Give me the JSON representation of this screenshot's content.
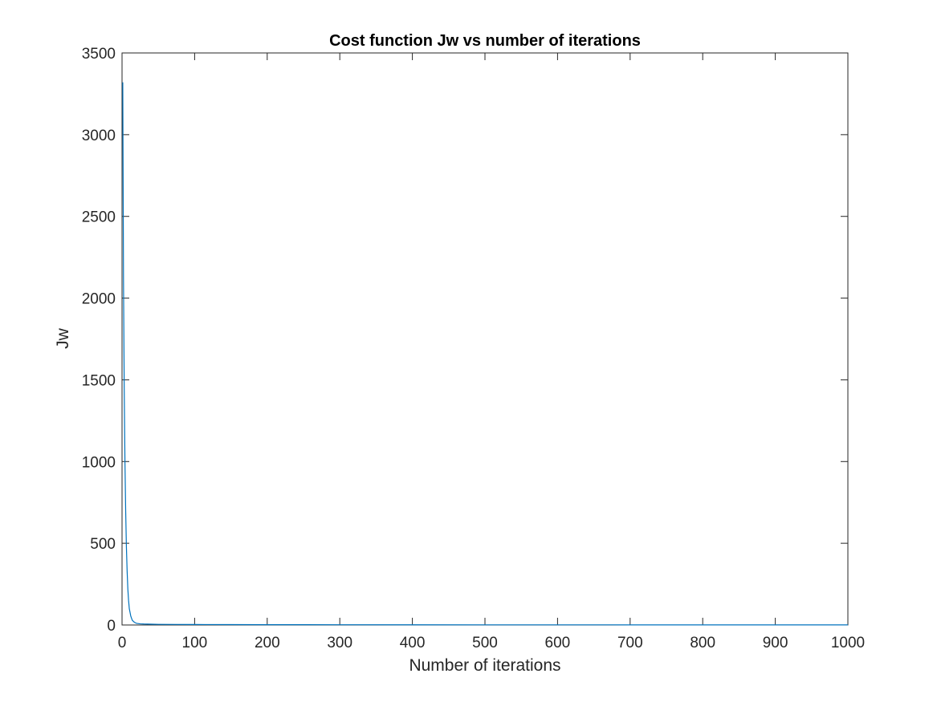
{
  "chart_data": {
    "type": "line",
    "title": "Cost function Jw vs number of iterations",
    "xlabel": "Number of iterations",
    "ylabel": "Jw",
    "xlim": [
      0,
      1000
    ],
    "ylim": [
      0,
      3500
    ],
    "xticks": [
      0,
      100,
      200,
      300,
      400,
      500,
      600,
      700,
      800,
      900,
      1000
    ],
    "yticks": [
      0,
      500,
      1000,
      1500,
      2000,
      2500,
      3000,
      3500
    ],
    "grid": false,
    "line_color": "#0072BD",
    "axis_color": "#262626",
    "series": [
      {
        "x": [
          1,
          2,
          3,
          4,
          5,
          6,
          7,
          8,
          9,
          10,
          12,
          14,
          16,
          18,
          20,
          25,
          30,
          40,
          50,
          75,
          100,
          150,
          200,
          300,
          400,
          500,
          600,
          700,
          800,
          900,
          1000
        ],
        "values": [
          3320,
          2120,
          1450,
          1000,
          700,
          480,
          330,
          220,
          150,
          100,
          55,
          30,
          20,
          14,
          10,
          7,
          6,
          5,
          4,
          3.5,
          3,
          2.5,
          2,
          1.5,
          1.2,
          1,
          0.9,
          0.8,
          0.7,
          0.6,
          0.5
        ]
      }
    ]
  }
}
